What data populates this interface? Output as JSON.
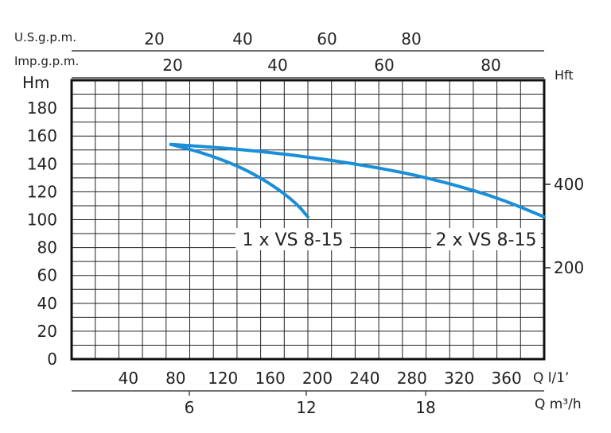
{
  "chart_data": {
    "type": "line",
    "title": "",
    "xlabel": "Q l/1’",
    "ylabel": "Hm",
    "xlim": [
      0,
      400
    ],
    "ylim": [
      0,
      200
    ],
    "grid": true,
    "x_ticks": [
      40,
      80,
      120,
      160,
      200,
      240,
      280,
      320,
      360
    ],
    "y_ticks": [
      0,
      20,
      40,
      60,
      80,
      100,
      120,
      140,
      160,
      180
    ],
    "series": [
      {
        "name": "1 x VS 8-15",
        "color": "#1a8fd8",
        "points": [
          [
            84,
            154
          ],
          [
            115,
            147
          ],
          [
            145,
            137
          ],
          [
            170,
            125
          ],
          [
            190,
            112
          ],
          [
            200,
            102
          ]
        ]
      },
      {
        "name": "2 x VS 8-15",
        "color": "#1a8fd8",
        "points": [
          [
            84,
            154
          ],
          [
            120,
            152
          ],
          [
            160,
            149
          ],
          [
            200,
            145
          ],
          [
            240,
            140
          ],
          [
            280,
            134
          ],
          [
            320,
            126
          ],
          [
            360,
            116
          ],
          [
            400,
            102
          ]
        ]
      }
    ],
    "secondary_axes": {
      "top_usgpm": {
        "label": "U.S.g.p.m.",
        "ticks": [
          20,
          40,
          60,
          80
        ]
      },
      "top_impgpm": {
        "label": "Imp.g.p.m.",
        "ticks": [
          20,
          40,
          60,
          80
        ]
      },
      "right_hft": {
        "label": "Hft",
        "ticks": [
          200,
          400
        ]
      },
      "bottom_m3h": {
        "label": "Q m³/h",
        "ticks": [
          6,
          12,
          18
        ]
      }
    }
  }
}
